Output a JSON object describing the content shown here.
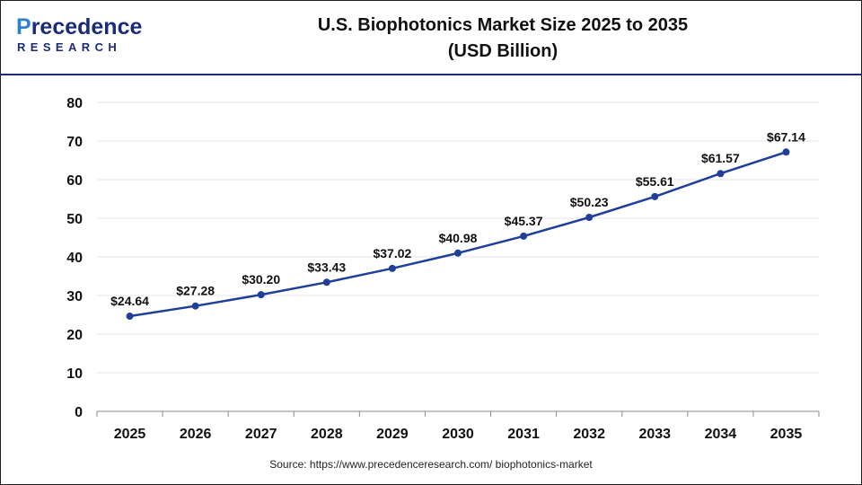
{
  "brand": {
    "name_main": "recedence",
    "name_initial": "P",
    "name_sub": "RESEARCH",
    "colors": {
      "primary": "#1a2b7a",
      "accent": "#2f7fd1"
    }
  },
  "header": {
    "title_line1": "U.S. Biophotonics Market Size 2025 to 2035",
    "title_line2": "(USD Billion)"
  },
  "footer": {
    "source": "Source: https://www.precedenceresearch.com/ biophotonics-market"
  },
  "chart_data": {
    "type": "line",
    "title": "U.S. Biophotonics Market Size 2025 to 2035 (USD Billion)",
    "x": [
      "2025",
      "2026",
      "2027",
      "2028",
      "2029",
      "2030",
      "2031",
      "2032",
      "2033",
      "2034",
      "2035"
    ],
    "series": [
      {
        "values": [
          24.64,
          27.28,
          30.2,
          33.43,
          37.02,
          40.98,
          45.37,
          50.23,
          55.61,
          61.57,
          67.14
        ],
        "labels": [
          "$24.64",
          "$27.28",
          "$30.20",
          "$33.43",
          "$37.02",
          "$40.98",
          "$45.37",
          "$50.23",
          "$55.61",
          "$61.57",
          "$67.14"
        ],
        "color": "#1f3f9a"
      }
    ],
    "yticks": [
      "0",
      "10",
      "20",
      "30",
      "40",
      "50",
      "60",
      "70",
      "80"
    ],
    "ylim": [
      0,
      80
    ],
    "xlabel": "",
    "ylabel": "",
    "grid": "horizontal",
    "legend": "none"
  }
}
